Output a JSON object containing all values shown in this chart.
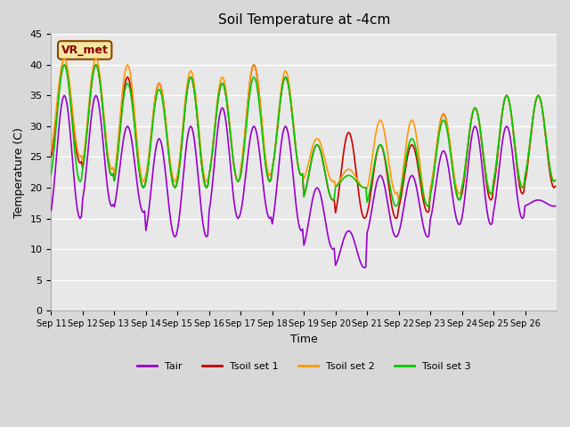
{
  "title": "Soil Temperature at -4cm",
  "xlabel": "Time",
  "ylabel": "Temperature (C)",
  "ylim": [
    0,
    45
  ],
  "annotation": "VR_met",
  "colors": {
    "Tair": "#9900cc",
    "Tsoil set 1": "#cc0000",
    "Tsoil set 2": "#ff9900",
    "Tsoil set 3": "#00cc00"
  },
  "legend_labels": [
    "Tair",
    "Tsoil set 1",
    "Tsoil set 2",
    "Tsoil set 3"
  ],
  "xtick_labels": [
    "Sep 11",
    "Sep 12",
    "Sep 13",
    "Sep 14",
    "Sep 15",
    "Sep 16",
    "Sep 17",
    "Sep 18",
    "Sep 19",
    "Sep 20",
    "Sep 21",
    "Sep 22",
    "Sep 23",
    "Sep 24",
    "Sep 25",
    "Sep 26"
  ],
  "n_days": 16,
  "pts_per_day": 24,
  "tair_peaks": [
    35,
    35,
    30,
    28,
    30,
    33,
    30,
    30,
    20,
    13,
    22,
    22,
    26,
    30,
    30,
    18
  ],
  "tair_troughs": [
    15,
    17,
    16,
    12,
    12,
    15,
    15,
    13,
    10,
    7,
    12,
    12,
    14,
    14,
    15,
    17
  ],
  "tsoil1_peaks": [
    40,
    40,
    38,
    37,
    38,
    37,
    40,
    38,
    27,
    29,
    27,
    27,
    32,
    33,
    35,
    35
  ],
  "tsoil1_troughs": [
    24,
    22,
    20,
    20,
    20,
    21,
    21,
    22,
    18,
    15,
    15,
    16,
    18,
    18,
    19,
    20
  ],
  "tsoil2_peaks": [
    41,
    41,
    40,
    37,
    39,
    38,
    40,
    39,
    28,
    23,
    31,
    31,
    32,
    33,
    35,
    35
  ],
  "tsoil2_troughs": [
    25,
    23,
    21,
    21,
    21,
    21,
    22,
    22,
    21,
    20,
    19,
    17,
    19,
    19,
    20,
    21
  ],
  "tsoil3_peaks": [
    40,
    40,
    37,
    36,
    38,
    37,
    38,
    38,
    27,
    22,
    27,
    28,
    31,
    33,
    35,
    35
  ],
  "tsoil3_troughs": [
    21,
    22,
    20,
    20,
    20,
    21,
    21,
    22,
    18,
    20,
    17,
    17,
    18,
    19,
    20,
    21
  ]
}
